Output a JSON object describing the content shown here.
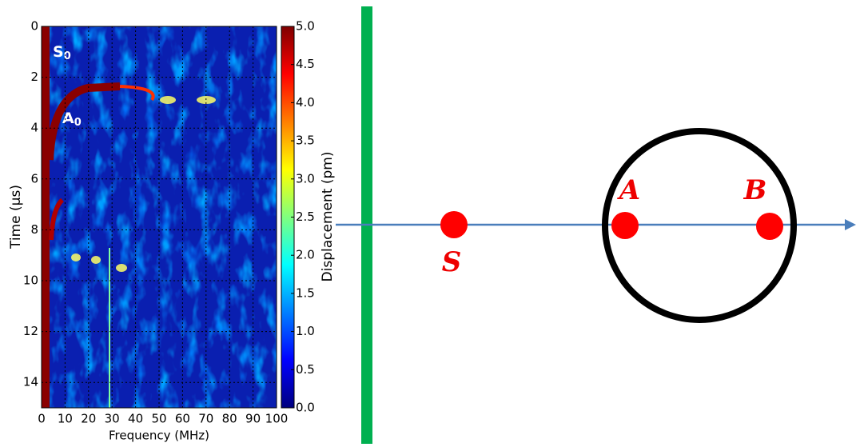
{
  "chart_data": {
    "type": "heatmap",
    "xlabel": "Frequency (MHz)",
    "ylabel": "Time (μs)",
    "xlim": [
      0,
      100
    ],
    "xticks": [
      0,
      10,
      20,
      30,
      40,
      50,
      60,
      70,
      80,
      90,
      100
    ],
    "ylim": [
      0,
      15
    ],
    "y_inverted": true,
    "yticks": [
      0,
      2,
      4,
      6,
      8,
      10,
      12,
      14
    ],
    "grid": true,
    "colorbar_label": "Displacement (pm)",
    "clim": [
      0,
      5
    ],
    "cticks": [
      {
        "value": 0,
        "label": "0.0"
      },
      {
        "value": 0.5,
        "label": "0.5"
      },
      {
        "value": 1,
        "label": "1.0"
      },
      {
        "value": 1.5,
        "label": "1.5"
      },
      {
        "value": 2,
        "label": "2.0"
      },
      {
        "value": 2.5,
        "label": "2.5"
      },
      {
        "value": 3,
        "label": "3.0"
      },
      {
        "value": 3.5,
        "label": "3.5"
      },
      {
        "value": 4,
        "label": "4.0"
      },
      {
        "value": 4.5,
        "label": "4.5"
      },
      {
        "value": 5,
        "label": "5.0"
      }
    ],
    "colormap": [
      "#00007f",
      "#0000ff",
      "#007fff",
      "#00ffff",
      "#7fff7f",
      "#ffff00",
      "#ff7f00",
      "#ff0000",
      "#7f0000"
    ],
    "annotations": [
      {
        "text": "S",
        "sub": "0"
      },
      {
        "text": "A",
        "sub": "0"
      }
    ]
  },
  "diagram": {
    "labels": [
      "S",
      "A",
      "B"
    ]
  }
}
